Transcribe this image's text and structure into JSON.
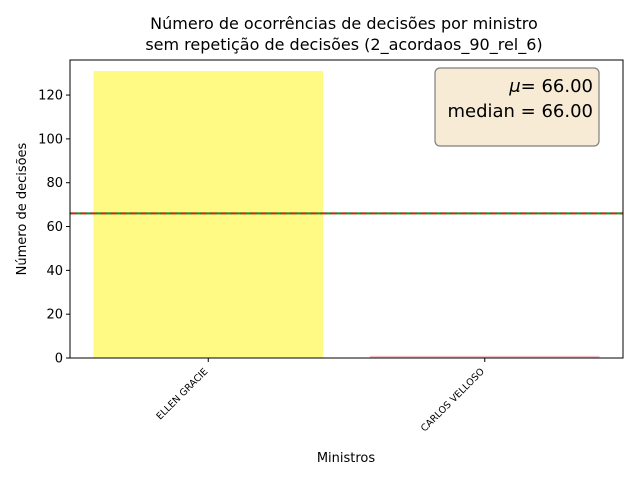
{
  "chart_data": {
    "type": "bar",
    "title": [
      "Número de ocorrências de decisões por ministro",
      "sem repetição de decisões (2_acordaos_90_rel_6)"
    ],
    "xlabel": "Ministros",
    "ylabel": "Número de decisões",
    "categories": [
      "ELLEN GRACIE",
      "CARLOS VELLOSO"
    ],
    "values": [
      131,
      1
    ],
    "bar_colors": [
      "#fefa83",
      "#f4c2c8"
    ],
    "ylim": [
      0,
      136
    ],
    "yticks": [
      0,
      20,
      40,
      60,
      80,
      100,
      120
    ],
    "mean": 66.0,
    "median": 66.0,
    "mean_line_color": "#cc2200",
    "median_line_color": "#228833",
    "stats_box": {
      "mean_symbol": "μ",
      "mean_text": "= 66.00",
      "median_text": "median = 66.00",
      "placement": "top-right",
      "background": "#f7ebd5",
      "border": "#7f7f7f"
    },
    "grid": false,
    "legend": "none"
  }
}
